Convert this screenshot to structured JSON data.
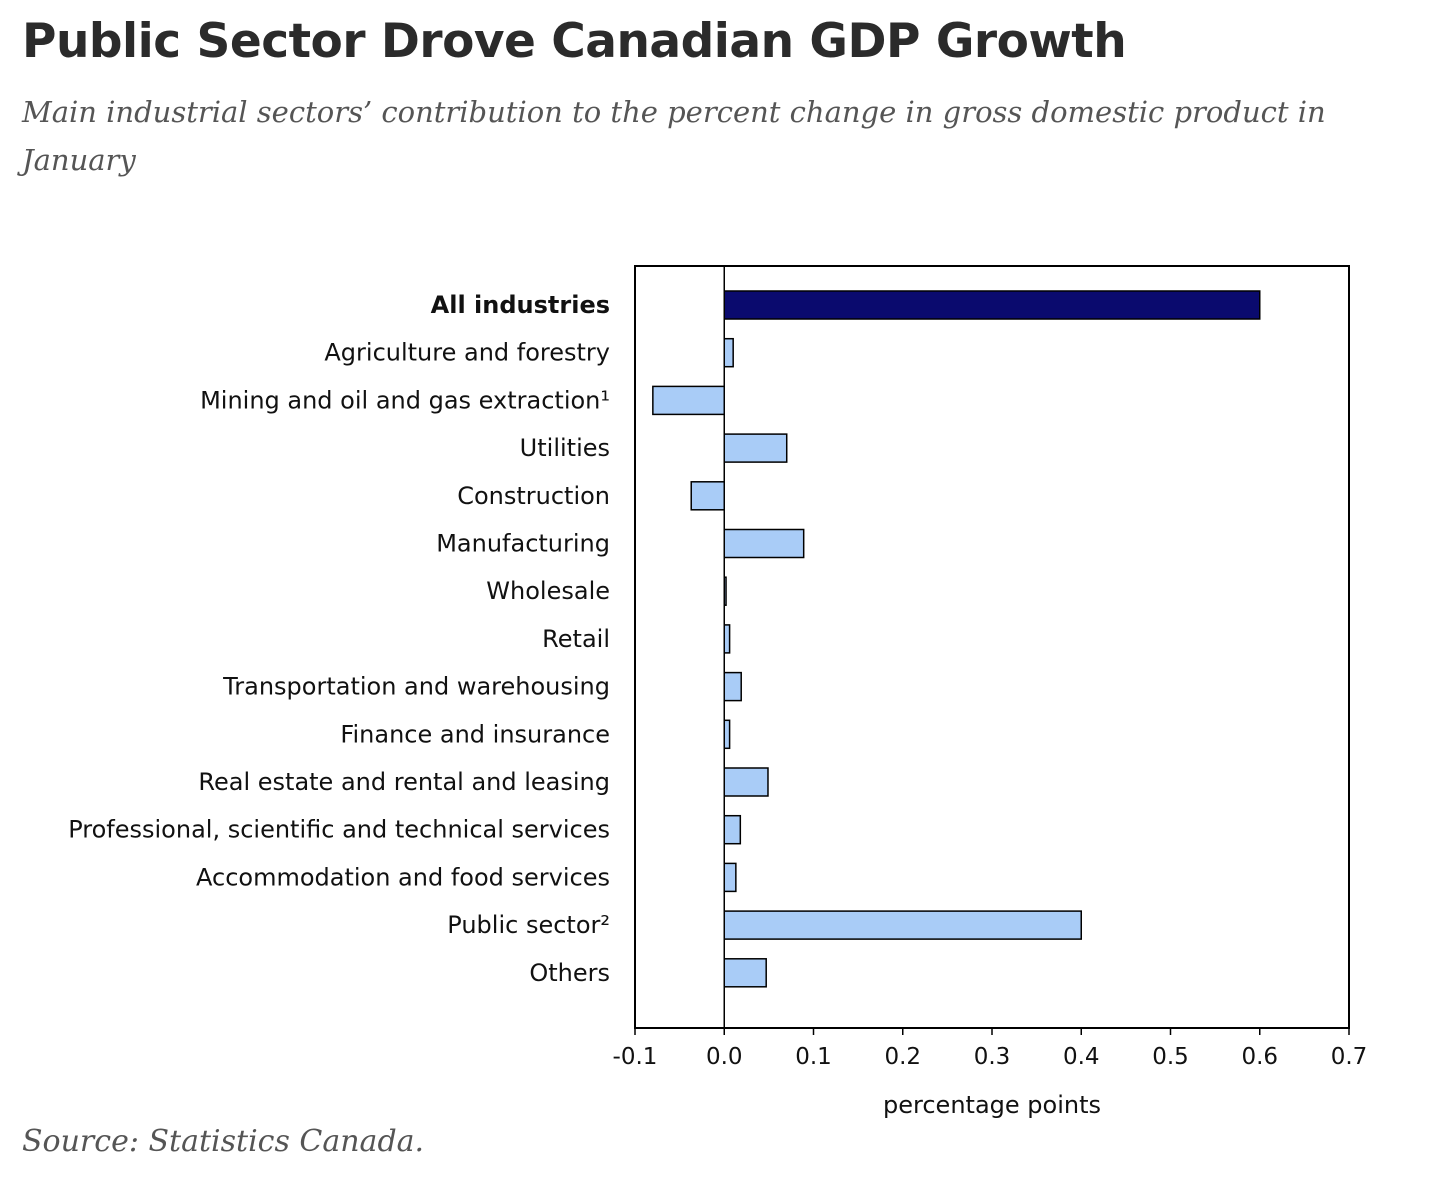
{
  "header": {
    "title": "Public Sector Drove Canadian GDP Growth",
    "subtitle": "Main industrial sectors’ contribution to the percent change in gross domestic product in January"
  },
  "footer": {
    "source": "Source: Statistics Canada."
  },
  "colors": {
    "total_bar": "#0a0a6e",
    "sector_bar": "#a9ccf7",
    "bar_outline": "#000000"
  },
  "chart_data": {
    "type": "bar",
    "orientation": "horizontal",
    "title": "",
    "xlabel": "percentage points",
    "ylabel": "",
    "xlim": [
      -0.1,
      0.7
    ],
    "xticks": [
      -0.1,
      0.0,
      0.1,
      0.2,
      0.3,
      0.4,
      0.5,
      0.6,
      0.7
    ],
    "xtick_labels": [
      "-0.1",
      "0.0",
      "0.1",
      "0.2",
      "0.3",
      "0.4",
      "0.5",
      "0.6",
      "0.7"
    ],
    "grid": false,
    "legend": "none",
    "categories": [
      "All industries",
      "Agriculture and forestry",
      "Mining and oil and gas extraction¹",
      "Utilities",
      "Construction",
      "Manufacturing",
      "Wholesale",
      "Retail",
      "Transportation and warehousing",
      "Finance and insurance",
      "Real estate and rental and leasing",
      "Professional, scientific and technical services",
      "Accommodation and food services",
      "Public sector²",
      "Others"
    ],
    "values": [
      0.6,
      0.01,
      -0.08,
      0.07,
      -0.037,
      0.089,
      0.002,
      0.006,
      0.019,
      0.006,
      0.049,
      0.018,
      0.013,
      0.4,
      0.047
    ],
    "highlight": [
      true,
      false,
      false,
      false,
      false,
      false,
      false,
      false,
      false,
      false,
      false,
      false,
      false,
      false,
      false
    ]
  }
}
